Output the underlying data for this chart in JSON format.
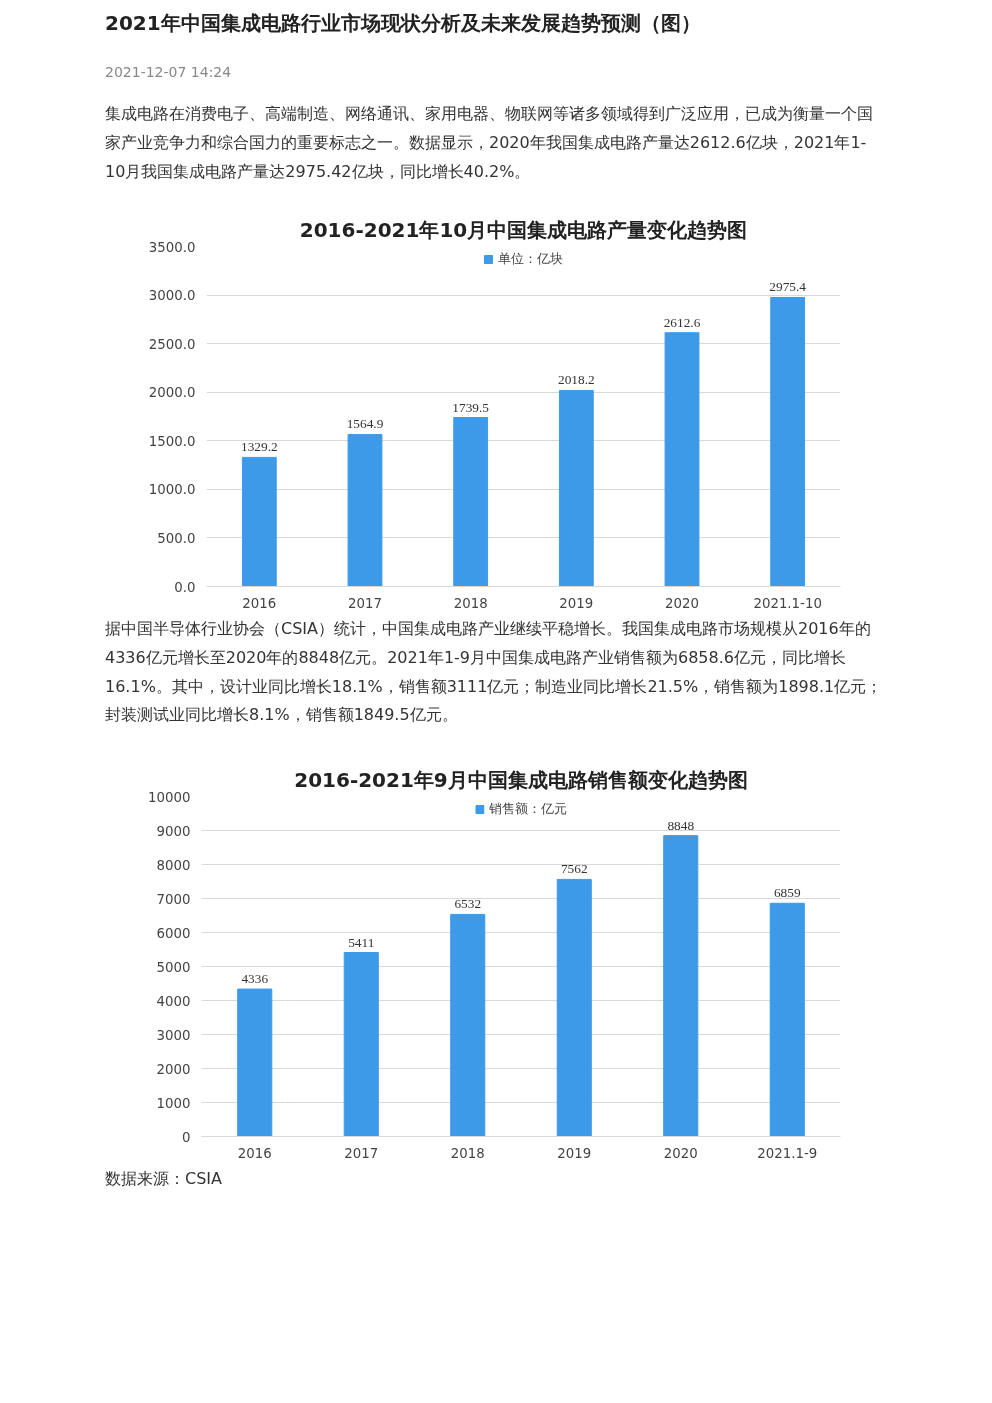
{
  "chart_data": [
    {
      "type": "bar",
      "title": "2016-2021年10月中国集成电路产量变化趋势图",
      "annotations": [
        "2021年中国集成电路行业市场现状分析及未来发展趋势预测（图）",
        "2021-12-07 14:24",
        "集成电路在消费电子、高端制造、网络通讯、家用电器、物联网等诸多领域得到广泛应用，已成为衡量一个国家产业竞争力和综合国力的重要标志之一。数据显示，2020年我国集成电路产量达2612.6亿块，2021年1-10月我国集成电路产量达2975.42亿块，同比增长40.2%。"
      ],
      "categories": [
        "2016",
        "2017",
        "2018",
        "2019",
        "2020",
        "2021.1-10"
      ],
      "series": [
        {
          "name": "单位：亿块",
          "color": "#3d9ae8",
          "values": [
            1329.2,
            1564.9,
            1739.5,
            2018.2,
            2612.6,
            2975.4
          ]
        }
      ],
      "data_labels": true,
      "ylim": [
        0,
        3500
      ],
      "yticks": [
        {
          "value": 0,
          "label": "0.0"
        },
        {
          "value": 500,
          "label": "500.0"
        },
        {
          "value": 1000,
          "label": "1000.0"
        },
        {
          "value": 1500,
          "label": "1500.0"
        },
        {
          "value": 2000,
          "label": "2000.0"
        },
        {
          "value": 2500,
          "label": "2500.0"
        },
        {
          "value": 3000,
          "label": "3000.0"
        },
        {
          "value": 3500,
          "label": "3500.0"
        }
      ],
      "grid": "y",
      "legend": "top"
    },
    {
      "type": "bar",
      "title": "2016-2021年9月中国集成电路销售额变化趋势图",
      "annotations": [
        "据中国半导体行业协会（CSIA）统计，中国集成电路产业继续平稳增长。我国集成电路市场规模从2016年的4336亿元增长至2020年的8848亿元。2021年1-9月中国集成电路产业销售额为6858.6亿元，同比增长16.1%。其中，设计业同比增长18.1%，销售额3111亿元；制造业同比增长21.5%，销售额为1898.1亿元；封装测试业同比增长8.1%，销售额1849.5亿元。",
        "数据来源：CSIA"
      ],
      "categories": [
        "2016",
        "2017",
        "2018",
        "2019",
        "2020",
        "2021.1-9"
      ],
      "series": [
        {
          "name": "销售额：亿元",
          "color": "#3d9ae8",
          "values": [
            4336,
            5411,
            6532,
            7562,
            8848,
            6859
          ]
        }
      ],
      "data_labels": true,
      "ylim": [
        0,
        10000
      ],
      "yticks": [
        0,
        1000,
        2000,
        3000,
        4000,
        5000,
        6000,
        7000,
        8000,
        9000,
        10000
      ],
      "grid": "y",
      "legend": "top"
    }
  ]
}
